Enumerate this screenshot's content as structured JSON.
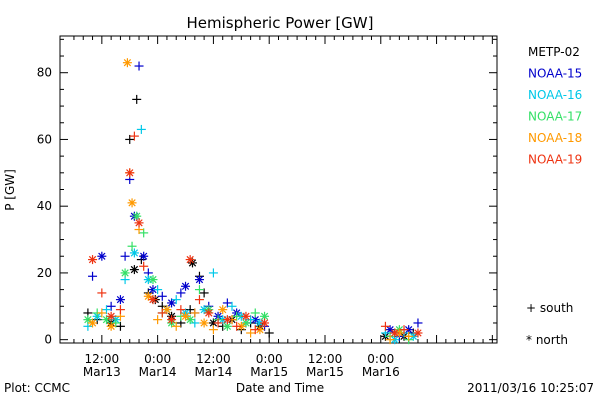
{
  "chart_data": {
    "type": "scatter",
    "title": "Hemispheric Power [GW]",
    "ylabel": "P [GW]",
    "xlabel": "Date and Time",
    "footer_left": "Plot: CCMC",
    "footer_right": "2011/03/16 10:25:07",
    "ylim": [
      -1,
      91
    ],
    "xlim": [
      3,
      97
    ],
    "y_ticks": [
      0,
      20,
      40,
      60,
      80
    ],
    "x_ticks": [
      {
        "x": 12,
        "label": "12:00",
        "sub": "Mar13"
      },
      {
        "x": 24,
        "label": "0:00",
        "sub": "Mar14"
      },
      {
        "x": 36,
        "label": "12:00",
        "sub": "Mar14"
      },
      {
        "x": 48,
        "label": "0:00",
        "sub": "Mar15"
      },
      {
        "x": 60,
        "label": "12:00",
        "sub": "Mar15"
      },
      {
        "x": 72,
        "label": "0:00",
        "sub": "Mar16"
      }
    ],
    "x_units": "hours from Mar13 00:00",
    "legend": {
      "position": "right"
    },
    "markers": [
      {
        "symbol": "+",
        "label": "south"
      },
      {
        "symbol": "*",
        "label": "north"
      }
    ],
    "series": [
      {
        "name": "METP-02",
        "color": "#000000",
        "points": [
          [
            9,
            8,
            "+"
          ],
          [
            11,
            6,
            "+"
          ],
          [
            14,
            5,
            "*"
          ],
          [
            16,
            4,
            "+"
          ],
          [
            18,
            60,
            "+"
          ],
          [
            19.5,
            72,
            "+"
          ],
          [
            19,
            21,
            "*"
          ],
          [
            20.5,
            24,
            "+"
          ],
          [
            22,
            14,
            "+"
          ],
          [
            23.5,
            12,
            "*"
          ],
          [
            25,
            10,
            "+"
          ],
          [
            27,
            7,
            "*"
          ],
          [
            29,
            5,
            "+"
          ],
          [
            31,
            9,
            "+"
          ],
          [
            31.5,
            23,
            "*"
          ],
          [
            33,
            19,
            "+"
          ],
          [
            34,
            14,
            "+"
          ],
          [
            36,
            5,
            "*"
          ],
          [
            38,
            4,
            "+"
          ],
          [
            40,
            6,
            "*"
          ],
          [
            42,
            3,
            "+"
          ],
          [
            44,
            5,
            "+"
          ],
          [
            46,
            4,
            "*"
          ],
          [
            48,
            2,
            "+"
          ],
          [
            73,
            1,
            "*"
          ],
          [
            75,
            2,
            "+"
          ],
          [
            77,
            1,
            "*"
          ],
          [
            79,
            2,
            "+"
          ]
        ]
      },
      {
        "name": "NOAA-15",
        "color": "#0000cc",
        "points": [
          [
            10,
            19,
            "+"
          ],
          [
            12,
            25,
            "*"
          ],
          [
            14,
            10,
            "+"
          ],
          [
            16,
            12,
            "*"
          ],
          [
            17,
            25,
            "+"
          ],
          [
            18,
            48,
            "+"
          ],
          [
            19,
            37,
            "*"
          ],
          [
            20,
            82,
            "+"
          ],
          [
            21,
            25,
            "*"
          ],
          [
            22,
            20,
            "+"
          ],
          [
            23,
            15,
            "*"
          ],
          [
            25,
            13,
            "+"
          ],
          [
            27,
            11,
            "*"
          ],
          [
            29,
            14,
            "+"
          ],
          [
            30,
            16,
            "*"
          ],
          [
            32,
            8,
            "+"
          ],
          [
            33,
            18,
            "*"
          ],
          [
            35,
            10,
            "+"
          ],
          [
            37,
            7,
            "*"
          ],
          [
            39,
            11,
            "+"
          ],
          [
            41,
            8,
            "*"
          ],
          [
            43,
            5,
            "+"
          ],
          [
            45,
            6,
            "*"
          ],
          [
            47,
            4,
            "+"
          ],
          [
            74,
            3,
            "*"
          ],
          [
            76,
            1,
            "+"
          ],
          [
            78,
            3,
            "*"
          ],
          [
            80,
            5,
            "+"
          ]
        ]
      },
      {
        "name": "NOAA-16",
        "color": "#00c8e8",
        "points": [
          [
            9,
            4,
            "+"
          ],
          [
            11,
            7,
            "*"
          ],
          [
            13,
            9,
            "+"
          ],
          [
            15,
            6,
            "*"
          ],
          [
            17,
            18,
            "+"
          ],
          [
            19,
            26,
            "*"
          ],
          [
            20.5,
            63,
            "+"
          ],
          [
            22,
            18,
            "*"
          ],
          [
            24,
            15,
            "+"
          ],
          [
            26,
            9,
            "*"
          ],
          [
            28,
            12,
            "+"
          ],
          [
            30,
            8,
            "*"
          ],
          [
            32,
            5,
            "+"
          ],
          [
            34,
            9,
            "*"
          ],
          [
            36,
            20,
            "+"
          ],
          [
            38,
            6,
            "*"
          ],
          [
            40,
            10,
            "+"
          ],
          [
            42,
            7,
            "*"
          ],
          [
            44,
            6,
            "+"
          ],
          [
            46,
            5,
            "*"
          ],
          [
            73,
            2,
            "+"
          ],
          [
            75,
            0,
            "*"
          ],
          [
            77,
            2,
            "+"
          ],
          [
            79,
            1,
            "*"
          ]
        ]
      },
      {
        "name": "NOAA-17",
        "color": "#33e066",
        "points": [
          [
            9,
            6,
            "*"
          ],
          [
            11,
            8,
            "+"
          ],
          [
            13,
            6,
            "*"
          ],
          [
            15,
            5,
            "+"
          ],
          [
            17,
            20,
            "*"
          ],
          [
            18.5,
            28,
            "+"
          ],
          [
            19.5,
            37,
            "*"
          ],
          [
            21,
            32,
            "+"
          ],
          [
            23,
            18,
            "*"
          ],
          [
            25,
            8,
            "+"
          ],
          [
            27,
            5,
            "*"
          ],
          [
            29,
            7,
            "+"
          ],
          [
            31,
            6,
            "*"
          ],
          [
            33,
            15,
            "+"
          ],
          [
            35,
            9,
            "*"
          ],
          [
            37,
            6,
            "+"
          ],
          [
            39,
            4,
            "*"
          ],
          [
            41,
            7,
            "+"
          ],
          [
            43,
            5,
            "*"
          ],
          [
            45,
            8,
            "+"
          ],
          [
            47,
            7,
            "*"
          ],
          [
            74,
            1,
            "+"
          ],
          [
            76,
            3,
            "*"
          ],
          [
            78,
            0,
            "+"
          ]
        ]
      },
      {
        "name": "NOAA-18",
        "color": "#ff9900",
        "points": [
          [
            10,
            5,
            "*"
          ],
          [
            12,
            8,
            "+"
          ],
          [
            14,
            4,
            "*"
          ],
          [
            16,
            7,
            "+"
          ],
          [
            17.5,
            83,
            "*"
          ],
          [
            18,
            50,
            "+"
          ],
          [
            18.5,
            41,
            "*"
          ],
          [
            20,
            33,
            "+"
          ],
          [
            22,
            13,
            "*"
          ],
          [
            24,
            6,
            "+"
          ],
          [
            26,
            9,
            "*"
          ],
          [
            28,
            4,
            "+"
          ],
          [
            30,
            7,
            "*"
          ],
          [
            32,
            8,
            "+"
          ],
          [
            34,
            5,
            "*"
          ],
          [
            36,
            3,
            "+"
          ],
          [
            38,
            9,
            "*"
          ],
          [
            40,
            6,
            "+"
          ],
          [
            42,
            4,
            "*"
          ],
          [
            44,
            2,
            "+"
          ],
          [
            46,
            3,
            "*"
          ],
          [
            74,
            0,
            "+"
          ],
          [
            76,
            2,
            "*"
          ],
          [
            78,
            1,
            "+"
          ]
        ]
      },
      {
        "name": "NOAA-19",
        "color": "#ee3311",
        "points": [
          [
            10,
            24,
            "*"
          ],
          [
            12,
            14,
            "+"
          ],
          [
            14,
            7,
            "*"
          ],
          [
            16,
            9,
            "+"
          ],
          [
            18,
            50,
            "*"
          ],
          [
            19,
            61,
            "+"
          ],
          [
            20,
            35,
            "*"
          ],
          [
            21,
            22,
            "+"
          ],
          [
            23,
            12,
            "*"
          ],
          [
            25,
            8,
            "+"
          ],
          [
            27,
            6,
            "*"
          ],
          [
            29,
            9,
            "+"
          ],
          [
            31,
            24,
            "*"
          ],
          [
            33,
            12,
            "+"
          ],
          [
            35,
            8,
            "*"
          ],
          [
            37,
            5,
            "+"
          ],
          [
            39,
            6,
            "*"
          ],
          [
            41,
            4,
            "+"
          ],
          [
            43,
            7,
            "*"
          ],
          [
            45,
            3,
            "+"
          ],
          [
            47,
            5,
            "*"
          ],
          [
            73,
            4,
            "+"
          ],
          [
            75,
            2,
            "*"
          ],
          [
            77,
            3,
            "+"
          ],
          [
            80,
            2,
            "*"
          ]
        ]
      }
    ]
  }
}
